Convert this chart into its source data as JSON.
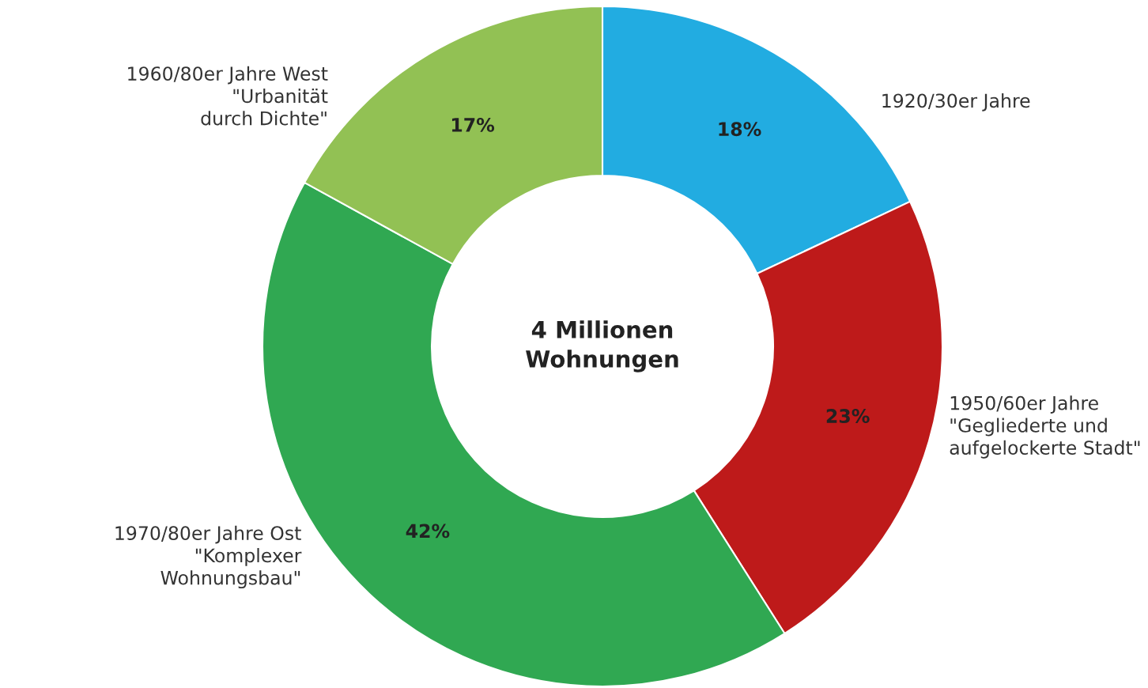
{
  "chart_data": {
    "type": "donut",
    "title": "4 Millionen\nWohnungen",
    "categories": [
      "1920/30er Jahre",
      "1950/60er Jahre\n\"Gegliederte und\naufgelockerte Stadt\"",
      "1970/80er Jahre Ost\n\"Komplexer\nWohnungsbau\"",
      "1960/80er Jahre West\n\"Urbanität\ndurch Dichte\""
    ],
    "values": [
      18,
      23,
      42,
      17
    ],
    "colors": [
      "#22ace1",
      "#be1a1a",
      "#30a852",
      "#92c154"
    ],
    "value_labels": [
      "18%",
      "23%",
      "42%",
      "17%"
    ]
  }
}
